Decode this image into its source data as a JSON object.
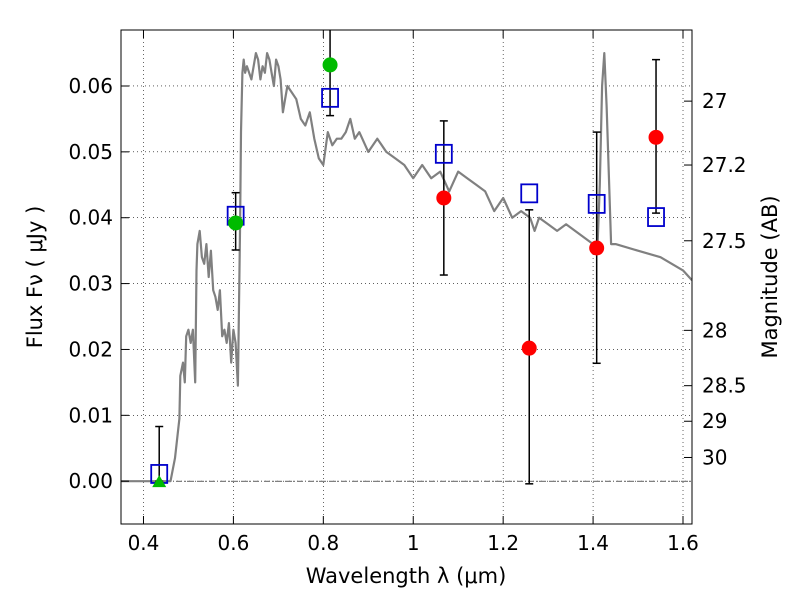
{
  "chart_data": {
    "type": "scatter",
    "title": "",
    "xlabel": "Wavelength  λ (μm)",
    "ylabel": "Flux  Fν  ( μJy )",
    "y2label": "Magnitude (AB)",
    "xlim": [
      0.35,
      1.62
    ],
    "ylim": [
      -0.0065,
      0.0685
    ],
    "grid": true,
    "x_ticks": [
      0.4,
      0.6,
      0.8,
      1.0,
      1.2,
      1.4,
      1.6
    ],
    "x_tick_labels": [
      "0.4",
      "0.6",
      "0.8",
      "1",
      "1.2",
      "1.4",
      "1.6"
    ],
    "y_ticks": [
      0.0,
      0.01,
      0.02,
      0.03,
      0.04,
      0.05,
      0.06
    ],
    "y_tick_labels": [
      "0.00",
      "0.01",
      "0.02",
      "0.03",
      "0.04",
      "0.05",
      "0.06"
    ],
    "y2_ticks": [
      {
        "label": "27",
        "flux": 0.0577
      },
      {
        "label": "27.2",
        "flux": 0.048
      },
      {
        "label": "27.5",
        "flux": 0.0365
      },
      {
        "label": "28",
        "flux": 0.0229
      },
      {
        "label": "28.5",
        "flux": 0.0145
      },
      {
        "label": "29",
        "flux": 0.0091
      },
      {
        "label": "30",
        "flux": 0.0036
      }
    ],
    "sed_model": {
      "color": "#808080",
      "x": [
        0.35,
        0.46,
        0.47,
        0.48,
        0.482,
        0.488,
        0.492,
        0.495,
        0.5,
        0.505,
        0.51,
        0.515,
        0.518,
        0.52,
        0.525,
        0.53,
        0.535,
        0.54,
        0.545,
        0.55,
        0.555,
        0.56,
        0.565,
        0.57,
        0.575,
        0.58,
        0.585,
        0.59,
        0.595,
        0.6,
        0.605,
        0.61,
        0.615,
        0.617,
        0.62,
        0.623,
        0.626,
        0.63,
        0.64,
        0.65,
        0.655,
        0.66,
        0.665,
        0.67,
        0.675,
        0.68,
        0.685,
        0.69,
        0.695,
        0.7,
        0.705,
        0.71,
        0.715,
        0.72,
        0.73,
        0.74,
        0.75,
        0.76,
        0.77,
        0.78,
        0.79,
        0.8,
        0.81,
        0.82,
        0.83,
        0.84,
        0.85,
        0.86,
        0.87,
        0.88,
        0.9,
        0.92,
        0.94,
        0.96,
        0.98,
        1.0,
        1.02,
        1.04,
        1.06,
        1.08,
        1.1,
        1.12,
        1.14,
        1.16,
        1.18,
        1.2,
        1.22,
        1.24,
        1.26,
        1.27,
        1.28,
        1.3,
        1.32,
        1.34,
        1.36,
        1.38,
        1.4,
        1.41,
        1.415,
        1.42,
        1.425,
        1.43,
        1.44,
        1.45,
        1.5,
        1.55,
        1.6,
        1.62
      ],
      "y": [
        0.0,
        0.0,
        0.0035,
        0.0095,
        0.016,
        0.018,
        0.015,
        0.022,
        0.023,
        0.021,
        0.023,
        0.015,
        0.032,
        0.036,
        0.038,
        0.034,
        0.033,
        0.036,
        0.031,
        0.035,
        0.029,
        0.028,
        0.026,
        0.029,
        0.022,
        0.023,
        0.021,
        0.024,
        0.018,
        0.023,
        0.021,
        0.0145,
        0.039,
        0.053,
        0.062,
        0.064,
        0.062,
        0.063,
        0.061,
        0.065,
        0.064,
        0.061,
        0.063,
        0.062,
        0.065,
        0.064,
        0.062,
        0.06,
        0.064,
        0.063,
        0.061,
        0.056,
        0.058,
        0.06,
        0.059,
        0.058,
        0.055,
        0.054,
        0.056,
        0.052,
        0.049,
        0.048,
        0.053,
        0.051,
        0.052,
        0.052,
        0.053,
        0.055,
        0.052,
        0.053,
        0.05,
        0.052,
        0.05,
        0.049,
        0.048,
        0.046,
        0.048,
        0.046,
        0.047,
        0.044,
        0.047,
        0.046,
        0.045,
        0.044,
        0.041,
        0.043,
        0.04,
        0.041,
        0.04,
        0.038,
        0.04,
        0.039,
        0.038,
        0.039,
        0.038,
        0.037,
        0.036,
        0.036,
        0.045,
        0.06,
        0.065,
        0.057,
        0.036,
        0.036,
        0.035,
        0.034,
        0.032,
        0.0305
      ]
    },
    "model_points": {
      "color": "#0000cc",
      "x": [
        0.435,
        0.605,
        0.815,
        1.068,
        1.258,
        1.408,
        1.54
      ],
      "y": [
        0.0011,
        0.0403,
        0.0582,
        0.0497,
        0.0437,
        0.0421,
        0.0401
      ]
    },
    "detections": {
      "color": "#00bb00",
      "x": [
        0.605,
        0.815
      ],
      "y": [
        0.0392,
        0.0632
      ],
      "yerr_low": [
        0.0041,
        0.0077
      ],
      "yerr_high": [
        0.0046,
        0.0078
      ]
    },
    "low_sn_points": {
      "color": "#ff0000",
      "x": [
        1.068,
        1.258,
        1.408,
        1.54
      ],
      "y": [
        0.043,
        0.0202,
        0.0354,
        0.0522
      ],
      "yerr_low": [
        0.0117,
        0.0206,
        0.0175,
        0.0115
      ],
      "yerr_high": [
        0.0117,
        0.021,
        0.0176,
        0.0118
      ]
    },
    "upper_limit": {
      "color": "#00bb00",
      "x": [
        0.435
      ],
      "y": [
        0.0
      ],
      "yerr_high": [
        0.0083
      ]
    }
  }
}
